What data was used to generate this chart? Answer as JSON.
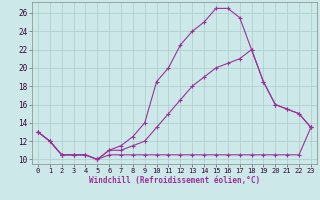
{
  "xlabel": "Windchill (Refroidissement éolien,°C)",
  "bg_color": "#cce8e8",
  "line_color": "#993399",
  "grid_color": "#aacccc",
  "xlim": [
    -0.5,
    23.5
  ],
  "ylim": [
    9.5,
    27.2
  ],
  "xticks": [
    0,
    1,
    2,
    3,
    4,
    5,
    6,
    7,
    8,
    9,
    10,
    11,
    12,
    13,
    14,
    15,
    16,
    17,
    18,
    19,
    20,
    21,
    22,
    23
  ],
  "yticks": [
    10,
    12,
    14,
    16,
    18,
    20,
    22,
    24,
    26
  ],
  "line1_x": [
    0,
    1,
    2,
    3,
    4,
    5,
    6,
    7,
    8,
    9,
    10,
    11,
    12,
    13,
    14,
    15,
    16,
    17,
    18,
    19,
    20,
    21,
    22,
    23
  ],
  "line1_y": [
    13,
    12,
    10.5,
    10.5,
    10.5,
    10,
    10.5,
    10.5,
    10.5,
    10.5,
    10.5,
    10.5,
    10.5,
    10.5,
    10.5,
    10.5,
    10.5,
    10.5,
    10.5,
    10.5,
    10.5,
    10.5,
    10.5,
    13.5
  ],
  "line2_x": [
    0,
    1,
    2,
    3,
    4,
    5,
    6,
    7,
    8,
    9,
    10,
    11,
    12,
    13,
    14,
    15,
    16,
    17,
    18,
    19,
    20,
    21,
    22,
    23
  ],
  "line2_y": [
    13,
    12,
    10.5,
    10.5,
    10.5,
    10,
    11,
    11,
    11.5,
    12,
    13.5,
    15,
    16.5,
    18,
    19,
    20,
    20.5,
    21,
    22,
    18.5,
    16,
    15.5,
    15,
    13.5
  ],
  "line3_x": [
    0,
    1,
    2,
    3,
    4,
    5,
    6,
    7,
    8,
    9,
    10,
    11,
    12,
    13,
    14,
    15,
    16,
    17,
    18,
    19,
    20,
    21,
    22,
    23
  ],
  "line3_y": [
    13,
    12,
    10.5,
    10.5,
    10.5,
    10,
    11,
    11.5,
    12.5,
    14,
    18.5,
    20,
    22.5,
    24,
    25,
    26.5,
    26.5,
    25.5,
    22,
    18.5,
    16,
    15.5,
    15,
    13.5
  ]
}
